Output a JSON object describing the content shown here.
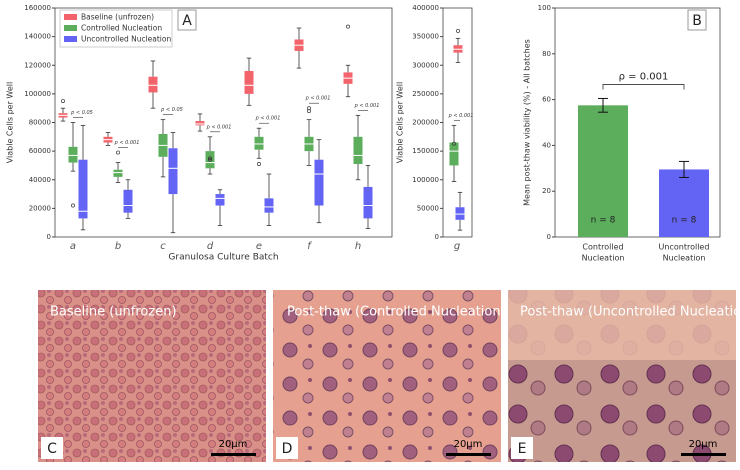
{
  "chart_data": [
    {
      "type": "box",
      "panel_label": "A",
      "ylabel": "Viable Cells per Well",
      "xlabel": "Granulosa Culture Batch",
      "categories": [
        "a",
        "b",
        "c",
        "d",
        "e",
        "f",
        "h"
      ],
      "ylim": [
        0,
        160000
      ],
      "yticks": [
        0,
        20000,
        40000,
        60000,
        80000,
        100000,
        120000,
        140000,
        160000
      ],
      "annotations": [
        "p < 0.05",
        "p < 0.001",
        "p < 0.05",
        "p < 0.001",
        "p < 0.001",
        "p < 0.001",
        "p < 0.001"
      ],
      "series": [
        {
          "name": "Baseline (unfrozen)",
          "color": "#f2636b",
          "values": [
            {
              "low": 81000,
              "q1": 83500,
              "median": 85000,
              "q3": 86500,
              "high": 90000,
              "outliers": [
                95000
              ]
            },
            {
              "low": 64000,
              "q1": 66000,
              "median": 68000,
              "q3": 70000,
              "high": 73000,
              "outliers": []
            },
            {
              "low": 90000,
              "q1": 101000,
              "median": 106000,
              "q3": 112000,
              "high": 123000,
              "outliers": []
            },
            {
              "low": 74000,
              "q1": 78000,
              "median": 79000,
              "q3": 81000,
              "high": 86000,
              "outliers": []
            },
            {
              "low": 92000,
              "q1": 100000,
              "median": 106000,
              "q3": 116000,
              "high": 125000,
              "outliers": []
            },
            {
              "low": 118000,
              "q1": 130000,
              "median": 134000,
              "q3": 138000,
              "high": 146000,
              "outliers": []
            },
            {
              "low": 98000,
              "q1": 107000,
              "median": 111000,
              "q3": 115000,
              "high": 120000,
              "outliers": [
                147000
              ]
            }
          ]
        },
        {
          "name": "Controlled Nucleation",
          "color": "#5cae5c",
          "values": [
            {
              "low": 46000,
              "q1": 52000,
              "median": 57000,
              "q3": 63000,
              "high": 80000,
              "outliers": [
                22000
              ]
            },
            {
              "low": 38000,
              "q1": 42000,
              "median": 45000,
              "q3": 47000,
              "high": 52000,
              "outliers": [
                59000
              ]
            },
            {
              "low": 42000,
              "q1": 56000,
              "median": 64000,
              "q3": 72000,
              "high": 82000,
              "outliers": []
            },
            {
              "low": 44000,
              "q1": 48000,
              "median": 52000,
              "q3": 60000,
              "high": 70000,
              "outliers": [
                54000,
                55000
              ]
            },
            {
              "low": 55000,
              "q1": 61000,
              "median": 65000,
              "q3": 70000,
              "high": 76000,
              "outliers": [
                51000
              ]
            },
            {
              "low": 50000,
              "q1": 60000,
              "median": 65000,
              "q3": 70000,
              "high": 82000,
              "outliers": [
                88000,
                90000
              ]
            },
            {
              "low": 40000,
              "q1": 51000,
              "median": 57000,
              "q3": 70000,
              "high": 85000,
              "outliers": []
            }
          ]
        },
        {
          "name": "Uncontrolled Nucleation",
          "color": "#6464f4",
          "values": [
            {
              "low": 5000,
              "q1": 13000,
              "median": 18000,
              "q3": 54000,
              "high": 78000,
              "outliers": []
            },
            {
              "low": 13000,
              "q1": 17000,
              "median": 22000,
              "q3": 33000,
              "high": 40000,
              "outliers": []
            },
            {
              "low": 3000,
              "q1": 30000,
              "median": 48000,
              "q3": 62000,
              "high": 73000,
              "outliers": []
            },
            {
              "low": 8000,
              "q1": 22000,
              "median": 27000,
              "q3": 30000,
              "high": 33000,
              "outliers": []
            },
            {
              "low": 8000,
              "q1": 17000,
              "median": 21000,
              "q3": 27000,
              "high": 44000,
              "outliers": []
            },
            {
              "low": 10000,
              "q1": 22000,
              "median": 44000,
              "q3": 54000,
              "high": 68000,
              "outliers": []
            },
            {
              "low": 6000,
              "q1": 13000,
              "median": 22000,
              "q3": 35000,
              "high": 50000,
              "outliers": []
            }
          ]
        }
      ]
    },
    {
      "type": "box",
      "ylabel": "Viable Cells per Well",
      "categories": [
        "g"
      ],
      "ylim": [
        0,
        400000
      ],
      "yticks": [
        0,
        50000,
        100000,
        150000,
        200000,
        250000,
        300000,
        350000,
        400000
      ],
      "annotations": [
        "p < 0.001"
      ],
      "series": [
        {
          "color": "#f2636b",
          "values": [
            {
              "low": 305000,
              "q1": 322000,
              "median": 328000,
              "q3": 335000,
              "high": 347000,
              "outliers": [
                360000
              ]
            }
          ]
        },
        {
          "color": "#5cae5c",
          "values": [
            {
              "low": 97000,
              "q1": 125000,
              "median": 150000,
              "q3": 165000,
              "high": 195000,
              "outliers": [
                163000
              ]
            }
          ]
        },
        {
          "color": "#6464f4",
          "values": [
            {
              "low": 12000,
              "q1": 30000,
              "median": 40000,
              "q3": 52000,
              "high": 78000,
              "outliers": []
            }
          ]
        }
      ]
    },
    {
      "type": "bar",
      "panel_label": "B",
      "ylabel": "Mean post-thaw viability (%) - All batches",
      "categories": [
        [
          "Controlled",
          "Nucleation"
        ],
        [
          "Uncontrolled",
          "Nucleation"
        ]
      ],
      "values": [
        57.5,
        29.5
      ],
      "errors": [
        3,
        3.5
      ],
      "colors": [
        "#5cae5c",
        "#6464f4"
      ],
      "bar_labels": [
        "n = 8",
        "n = 8"
      ],
      "annotation": "ρ = 0.001",
      "ylim": [
        0,
        100
      ],
      "yticks": [
        0,
        20,
        40,
        60,
        80,
        100
      ]
    }
  ],
  "images": [
    {
      "title": "Baseline (unfrozen)",
      "label": "C",
      "scale_bar": "20μm"
    },
    {
      "title": "Post-thaw (Controlled Nucleation)",
      "label": "D",
      "scale_bar": "20μm"
    },
    {
      "title": "Post-thaw (Uncontrolled Nucleation)",
      "label": "E",
      "scale_bar": "20μm"
    }
  ]
}
